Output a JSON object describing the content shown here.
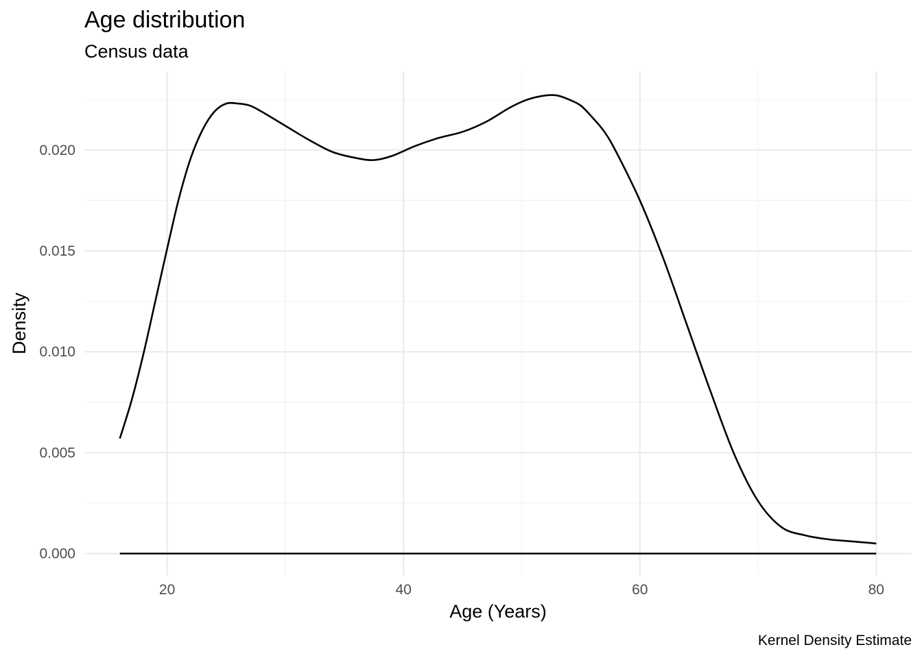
{
  "chart_data": {
    "type": "line",
    "title": "Age distribution",
    "subtitle": "Census data",
    "xlabel": "Age (Years)",
    "ylabel": "Density",
    "caption": "Kernel Density Estimate",
    "xlim": [
      13,
      83
    ],
    "ylim": [
      -0.0011,
      0.0239
    ],
    "x_ticks": [
      20,
      40,
      60,
      80
    ],
    "x_tick_labels": [
      "20",
      "40",
      "60",
      "80"
    ],
    "x_minor_ticks": [
      30,
      50,
      70
    ],
    "y_ticks": [
      0,
      0.005,
      0.01,
      0.015,
      0.02
    ],
    "y_tick_labels": [
      "0.000",
      "0.005",
      "0.010",
      "0.015",
      "0.020"
    ],
    "y_minor_ticks": [
      0.0025,
      0.0075,
      0.0125,
      0.0175,
      0.0225
    ],
    "grid": true,
    "legend": "none",
    "line_color": "#000000",
    "series": [
      {
        "x": [
          16,
          17,
          18,
          19,
          20,
          21,
          22,
          23,
          24,
          25,
          26,
          27,
          28,
          30,
          32,
          34,
          36,
          37.5,
          39,
          41,
          43,
          45,
          47,
          49,
          50.5,
          52,
          53,
          54,
          55,
          56,
          57,
          58,
          60,
          62,
          64,
          66,
          68,
          70,
          72,
          74,
          76,
          78,
          80
        ],
        "y": [
          0.0057,
          0.0076,
          0.0099,
          0.0125,
          0.0151,
          0.0176,
          0.0196,
          0.021,
          0.0219,
          0.0223,
          0.0223,
          0.0222,
          0.0219,
          0.0212,
          0.0205,
          0.0199,
          0.0196,
          0.0195,
          0.0197,
          0.0202,
          0.0206,
          0.0209,
          0.0214,
          0.0221,
          0.0225,
          0.0227,
          0.0227,
          0.0225,
          0.0222,
          0.0216,
          0.0209,
          0.0199,
          0.0175,
          0.0146,
          0.0113,
          0.008,
          0.0049,
          0.0026,
          0.0013,
          0.0009,
          0.0007,
          0.0006,
          0.0005
        ]
      },
      {
        "x": [
          16,
          80
        ],
        "y": [
          0,
          0
        ]
      }
    ]
  }
}
